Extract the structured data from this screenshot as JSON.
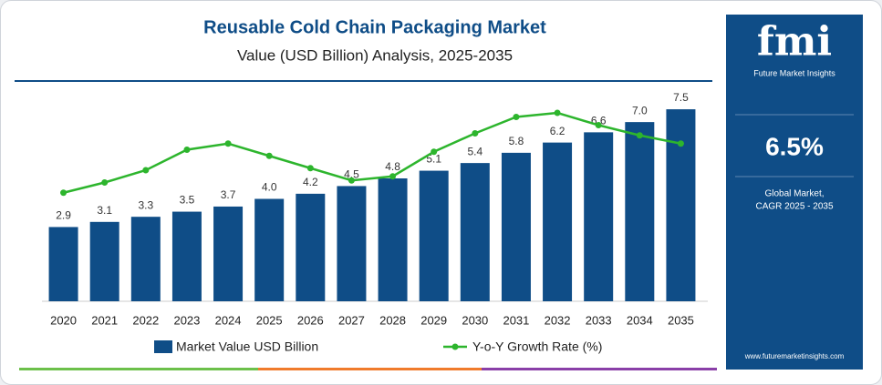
{
  "chart_data": {
    "type": "bar-line",
    "title": "Reusable Cold Chain Packaging Market",
    "subtitle": "Value (USD Billion) Analysis, 2025-2035",
    "categories": [
      "2020",
      "2021",
      "2022",
      "2023",
      "2024",
      "2025",
      "2026",
      "2027",
      "2028",
      "2029",
      "2030",
      "2031",
      "2032",
      "2033",
      "2034",
      "2035"
    ],
    "series": [
      {
        "name": "Market Value USD Billion",
        "type": "bar",
        "color": "#0f4d87",
        "values": [
          2.9,
          3.1,
          3.3,
          3.5,
          3.7,
          4.0,
          4.2,
          4.5,
          4.8,
          5.1,
          5.4,
          5.8,
          6.2,
          6.6,
          7.0,
          7.5
        ],
        "value_labels": [
          "2.9",
          "3.1",
          "3.3",
          "3.5",
          "3.7",
          "4.0",
          "4.2",
          "4.5",
          "4.8",
          "5.1",
          "5.4",
          "5.8",
          "6.2",
          "6.6",
          "7.0",
          "7.5"
        ]
      },
      {
        "name": "Y-o-Y Growth Rate (%)",
        "type": "line",
        "axis": "y2",
        "color": "#2db52d",
        "values": [
          5.3,
          5.8,
          6.4,
          7.4,
          7.7,
          7.1,
          6.5,
          5.9,
          6.1,
          7.3,
          8.2,
          9.0,
          9.2,
          8.6,
          8.1,
          7.7
        ]
      }
    ],
    "ylim": [
      0,
      8
    ],
    "y2lim": [
      0,
      10
    ]
  },
  "panel": {
    "logo": "fmi",
    "brand": "Future Market Insights",
    "cagr": "6.5%",
    "cagr_label": [
      "Global Market,",
      "CAGR 2025 - 2035"
    ],
    "url": "www.futuremarketinsights.com"
  }
}
